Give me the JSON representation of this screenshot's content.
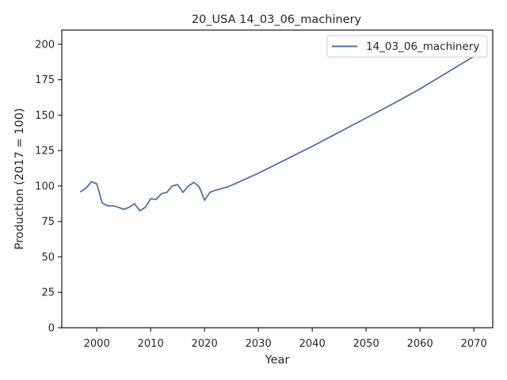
{
  "chart_data": {
    "type": "line",
    "title": "20_USA 14_03_06_machinery",
    "xlabel": "Year",
    "ylabel": "Production (2017 = 100)",
    "xlim": [
      1993.5,
      2073.5
    ],
    "ylim": [
      0,
      210
    ],
    "xticks": [
      2000,
      2010,
      2020,
      2030,
      2040,
      2050,
      2060,
      2070
    ],
    "yticks": [
      0,
      25,
      50,
      75,
      100,
      125,
      150,
      175,
      200
    ],
    "grid": false,
    "legend_position": "top-right",
    "series": [
      {
        "name": "14_03_06_machinery",
        "color": "#4c72b0",
        "x": [
          1997,
          1998,
          1999,
          2000,
          2001,
          2002,
          2003,
          2004,
          2005,
          2006,
          2007,
          2008,
          2009,
          2010,
          2011,
          2012,
          2013,
          2014,
          2015,
          2016,
          2017,
          2018,
          2019,
          2020,
          2021,
          2022,
          2023,
          2024,
          2025,
          2030,
          2035,
          2040,
          2045,
          2050,
          2055,
          2060,
          2065,
          2070,
          2071
        ],
        "values": [
          96.0,
          98.5,
          103.0,
          101.5,
          88.0,
          86.0,
          86.0,
          85.0,
          83.5,
          85.0,
          87.5,
          82.5,
          85.0,
          91.0,
          90.5,
          94.5,
          95.5,
          100.0,
          101.0,
          95.5,
          100.0,
          102.5,
          99.5,
          90.0,
          95.5,
          97.0,
          98.0,
          99.0,
          100.5,
          109.0,
          118.5,
          128.0,
          138.0,
          148.0,
          158.0,
          168.5,
          180.0,
          191.5,
          194.0
        ]
      }
    ]
  }
}
